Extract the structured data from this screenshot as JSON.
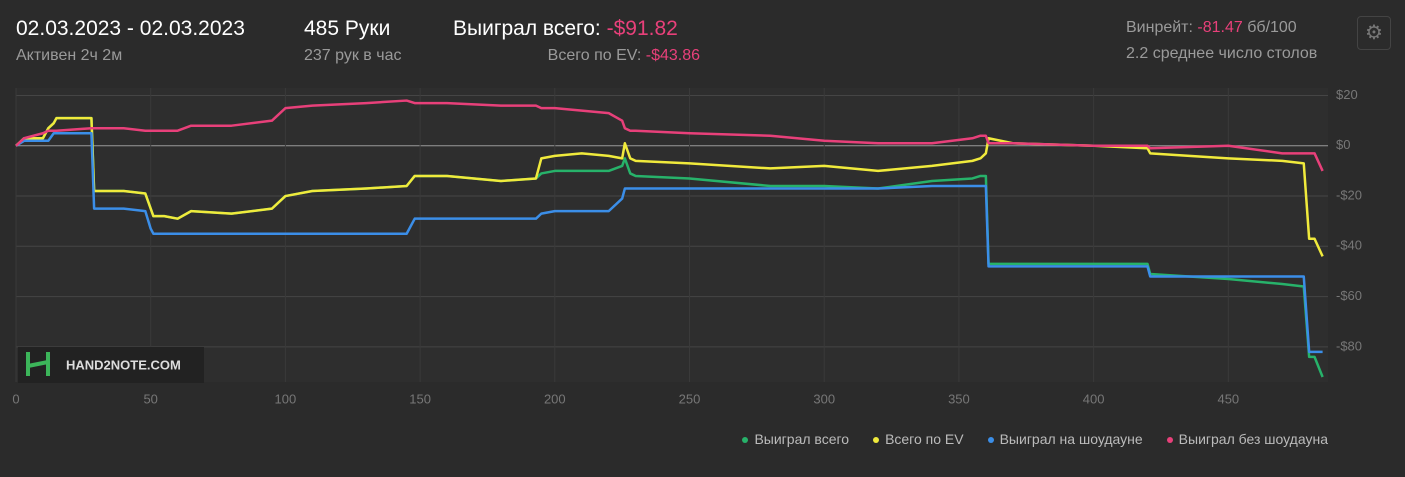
{
  "header": {
    "date_range": "02.03.2023 - 02.03.2023",
    "active": "Активен 2ч 2м",
    "hands": "485 Руки",
    "hands_per_hour": "237 рук в час",
    "won_label": "Выиграл всего:",
    "won_value": "-$91.82",
    "ev_label": "Всего по EV:",
    "ev_value": "-$43.86",
    "winrate_label": "Винрейт:",
    "winrate_value": "-81.47",
    "winrate_unit": "бб/100",
    "tables": "2.2 среднее число столов",
    "logo": "HAND2NOTE.COM"
  },
  "chart_data": {
    "type": "line",
    "x": [
      0,
      3,
      10,
      12,
      14,
      15,
      28,
      29,
      40,
      48,
      50,
      51,
      55,
      60,
      65,
      80,
      95,
      100,
      110,
      130,
      145,
      148,
      150,
      160,
      180,
      193,
      195,
      200,
      210,
      220,
      225,
      226,
      228,
      230,
      250,
      280,
      300,
      320,
      340,
      355,
      358,
      360,
      361,
      370,
      400,
      420,
      421,
      450,
      470,
      478,
      480,
      482,
      485
    ],
    "series": [
      {
        "name": "Выиграл всего",
        "color": "#27b26a",
        "values": [
          0,
          3,
          3,
          7,
          9,
          11,
          11,
          -18,
          -18,
          -19,
          -25,
          -28,
          -28,
          -29,
          -26,
          -27,
          -25,
          -20,
          -18,
          -17,
          -16,
          -12,
          -12,
          -12,
          -14,
          -13,
          -11,
          -10,
          -10,
          -10,
          -8,
          -5,
          -11,
          -12,
          -13,
          -16,
          -16,
          -17,
          -14,
          -13,
          -12,
          -12,
          -47,
          -47,
          -47,
          -47,
          -51,
          -53,
          -55,
          -56,
          -84,
          -84,
          -92
        ]
      },
      {
        "name": "Всего по EV",
        "color": "#f0ea3c",
        "values": [
          0,
          3,
          3,
          7,
          9,
          11,
          11,
          -18,
          -18,
          -19,
          -25,
          -28,
          -28,
          -29,
          -26,
          -27,
          -25,
          -20,
          -18,
          -17,
          -16,
          -12,
          -12,
          -12,
          -14,
          -13,
          -5,
          -4,
          -3,
          -4,
          -5,
          1,
          -5,
          -6,
          -7,
          -9,
          -8,
          -10,
          -8,
          -6,
          -5,
          -3,
          3,
          1,
          0,
          -1,
          -3,
          -5,
          -6,
          -7,
          -37,
          -37,
          -44
        ]
      },
      {
        "name": "Выиграл на шоудауне",
        "color": "#3b8ee8",
        "values": [
          0,
          2,
          2,
          2,
          5,
          5,
          5,
          -25,
          -25,
          -26,
          -33,
          -35,
          -35,
          -35,
          -35,
          -35,
          -35,
          -35,
          -35,
          -35,
          -35,
          -29,
          -29,
          -29,
          -29,
          -29,
          -27,
          -26,
          -26,
          -26,
          -21,
          -17,
          -17,
          -17,
          -17,
          -17,
          -17,
          -17,
          -16,
          -16,
          -16,
          -16,
          -48,
          -48,
          -48,
          -48,
          -52,
          -52,
          -52,
          -52,
          -82,
          -82,
          -82
        ]
      },
      {
        "name": "Выиграл без шоудауна",
        "color": "#e8407a",
        "values": [
          0,
          3,
          5,
          6,
          6,
          6,
          7,
          7,
          7,
          6,
          6,
          6,
          6,
          6,
          8,
          8,
          10,
          15,
          16,
          17,
          18,
          17,
          17,
          17,
          16,
          16,
          15,
          15,
          14,
          13,
          10,
          7,
          6,
          6,
          5,
          4,
          2,
          1,
          1,
          3,
          4,
          4,
          1,
          1,
          0,
          0,
          -1,
          0,
          -3,
          -3,
          -3,
          -3,
          -10
        ]
      }
    ],
    "xlim": [
      0,
      487
    ],
    "xticks": [
      0,
      50,
      100,
      150,
      200,
      250,
      300,
      350,
      400,
      450
    ],
    "ylim": [
      -94,
      23
    ],
    "yticks": [
      {
        "value": 20,
        "label": "$20"
      },
      {
        "value": 0,
        "label": "$0"
      },
      {
        "value": -20,
        "label": "-$20"
      },
      {
        "value": -40,
        "label": "-$40"
      },
      {
        "value": -60,
        "label": "-$60"
      },
      {
        "value": -80,
        "label": "-$80"
      }
    ],
    "grid": true
  }
}
